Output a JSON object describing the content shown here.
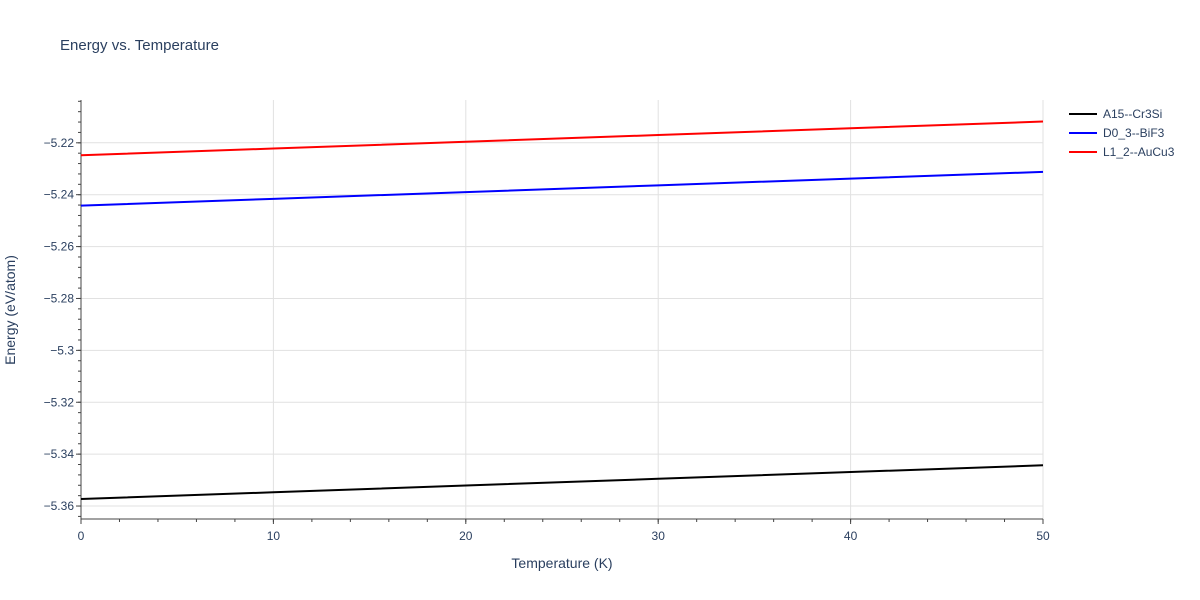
{
  "chart_data": {
    "type": "line",
    "title": "Energy vs. Temperature",
    "xlabel": "Temperature (K)",
    "ylabel": "Energy (eV/atom)",
    "xlim": [
      0,
      50
    ],
    "ylim": [
      -5.365,
      -5.2035
    ],
    "x_ticks": [
      0,
      10,
      20,
      30,
      40,
      50
    ],
    "x_tick_labels": [
      "0",
      "10",
      "20",
      "30",
      "40",
      "50"
    ],
    "y_ticks": [
      -5.36,
      -5.34,
      -5.32,
      -5.3,
      -5.28,
      -5.26,
      -5.24,
      -5.22
    ],
    "y_tick_labels": [
      "−5.36",
      "−5.34",
      "−5.32",
      "−5.3",
      "−5.28",
      "−5.26",
      "−5.24",
      "−5.22"
    ],
    "grid": true,
    "legend_position": "top-right",
    "series": [
      {
        "name": "A15--Cr3Si",
        "color": "#000000",
        "x": [
          0,
          10,
          20,
          30,
          40,
          50
        ],
        "y": [
          -5.3573,
          -5.3547,
          -5.3521,
          -5.3495,
          -5.3469,
          -5.3443
        ]
      },
      {
        "name": "D0_3--BiF3",
        "color": "#0000ff",
        "x": [
          0,
          10,
          20,
          30,
          40,
          50
        ],
        "y": [
          -5.2442,
          -5.2416,
          -5.239,
          -5.2364,
          -5.2338,
          -5.2312
        ]
      },
      {
        "name": "L1_2--AuCu3",
        "color": "#ff0000",
        "x": [
          0,
          10,
          20,
          30,
          40,
          50
        ],
        "y": [
          -5.2248,
          -5.2222,
          -5.2196,
          -5.217,
          -5.2144,
          -5.2118
        ]
      }
    ]
  }
}
